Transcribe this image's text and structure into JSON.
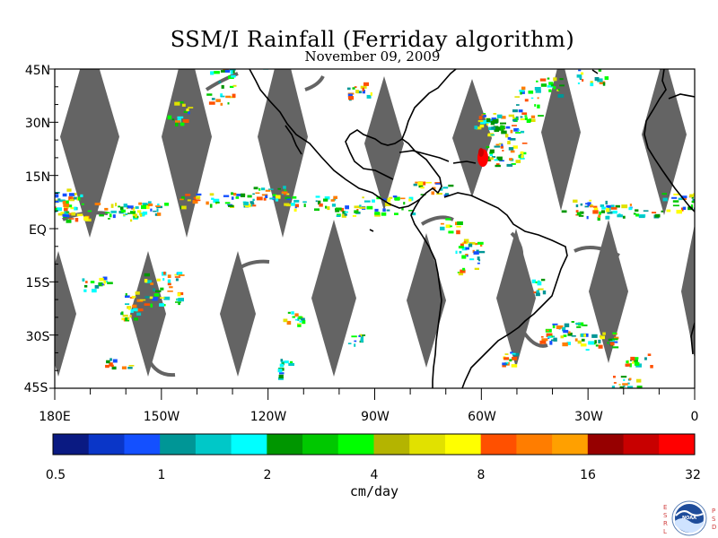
{
  "title": "SSM/I Rainfall (Ferriday algorithm)",
  "subtitle": "November 09, 2009",
  "map": {
    "lat_labels": [
      "45N",
      "30N",
      "15N",
      "EQ",
      "15S",
      "30S",
      "45S"
    ],
    "lon_labels": [
      "180E",
      "150W",
      "120W",
      "90W",
      "60W",
      "30W",
      "0"
    ],
    "no_data_color": "#646464",
    "coast_color": "#000000"
  },
  "colorbar": {
    "colors": [
      "#0a1a82",
      "#0a36c8",
      "#1450ff",
      "#009696",
      "#00c8c8",
      "#00ffff",
      "#009600",
      "#00c800",
      "#00ff00",
      "#b4b400",
      "#e1e100",
      "#ffff00",
      "#ff5000",
      "#ff7d00",
      "#ffa000",
      "#960000",
      "#c80000",
      "#ff0000"
    ],
    "tick_labels": [
      "0.5",
      "1",
      "2",
      "4",
      "8",
      "16",
      "32"
    ],
    "unit_label": "cm/day"
  },
  "logo": {
    "left_letters": [
      "E",
      "S",
      "R",
      "L"
    ],
    "right_letters": [
      "P",
      "S",
      "D"
    ],
    "emblem_text": "NOAA"
  }
}
